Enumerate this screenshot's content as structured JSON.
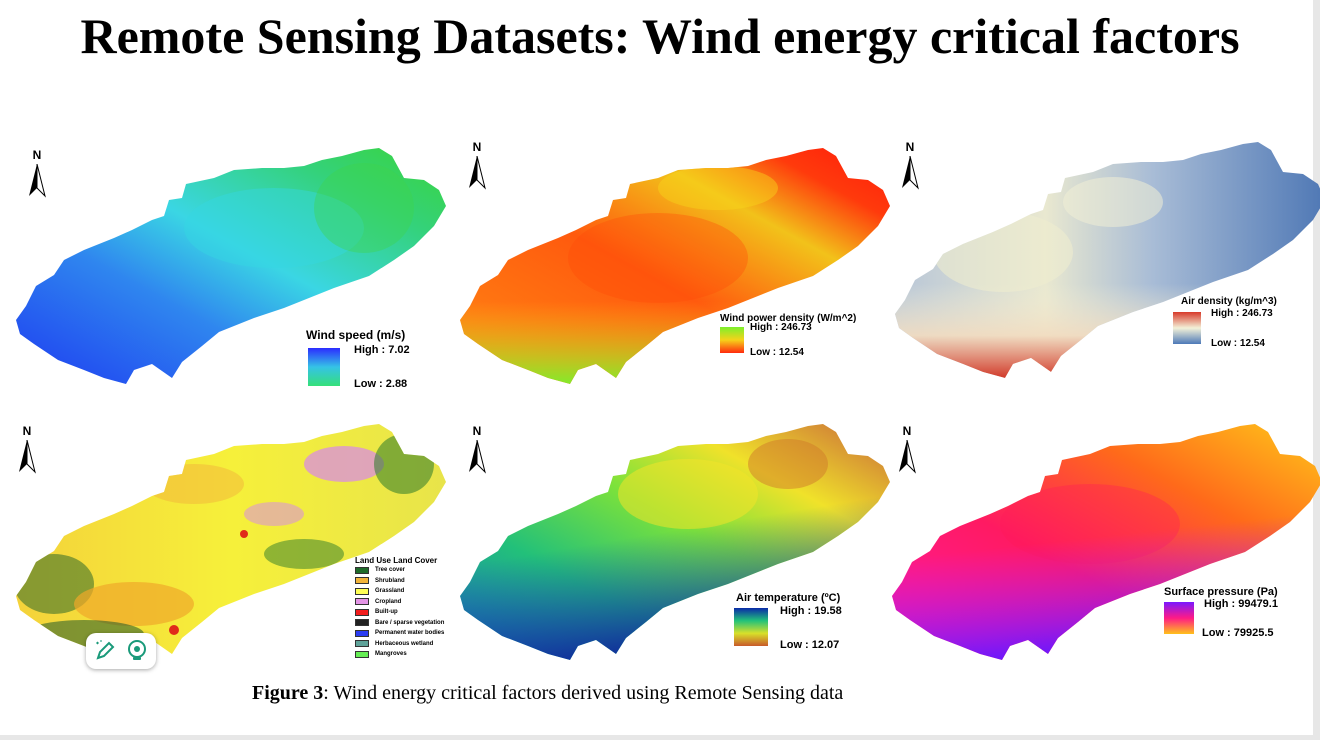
{
  "title": "Remote Sensing Datasets: Wind energy critical factors",
  "north_label": "N",
  "panels": [
    {
      "id": "wind_speed",
      "legend_title": "Wind speed (m/s)",
      "high": "High : 7.02",
      "low": "Low : 2.88",
      "ramp": [
        "#2b2cff",
        "#35c3e6",
        "#35e07a"
      ]
    },
    {
      "id": "wind_power_density",
      "legend_title": "Wind power density (W/m^2)",
      "high": "High : 246.73",
      "low": "Low : 12.54",
      "ramp": [
        "#7cf02c",
        "#f6d21a",
        "#ff2a0e"
      ]
    },
    {
      "id": "air_density",
      "legend_title": "Air density (kg/m^3)",
      "high": "High : 246.73",
      "low": "Low : 12.54",
      "ramp": [
        "#d73a2a",
        "#f3f1d8",
        "#4d79b8"
      ]
    },
    {
      "id": "land_use",
      "legend_title": "Land Use Land Cover"
    },
    {
      "id": "air_temperature",
      "legend_title": "Air temperature (ºC)",
      "high": "High : 19.58",
      "low": "Low : 12.07",
      "ramp": [
        "#0a2aa8",
        "#22c27a",
        "#d8e02a",
        "#c85a2a"
      ]
    },
    {
      "id": "surface_pressure",
      "legend_title": "Surface pressure (Pa)",
      "high": "High : 99479.1",
      "low": "Low : 79925.5",
      "ramp": [
        "#7a18ff",
        "#ff1a86",
        "#ffc21a"
      ]
    }
  ],
  "lulc_legend": [
    {
      "label": "Tree cover",
      "color": "#1f6b2a"
    },
    {
      "label": "Shrubland",
      "color": "#f2b43a"
    },
    {
      "label": "Grassland",
      "color": "#ffff55"
    },
    {
      "label": "Cropland",
      "color": "#e495e6"
    },
    {
      "label": "Built-up",
      "color": "#f21d1d"
    },
    {
      "label": "Bare / sparse vegetation",
      "color": "#222222"
    },
    {
      "label": "Permanent water bodies",
      "color": "#2b3df2"
    },
    {
      "label": "Herbaceous wetland",
      "color": "#5fa39a"
    },
    {
      "label": "Mangroves",
      "color": "#66ee55"
    }
  ],
  "caption": {
    "label": "Figure 3",
    "text": ": Wind energy critical factors derived using Remote Sensing data"
  },
  "toolbar": {
    "items": [
      "pencil-sparkle-icon",
      "lightbulb-icon"
    ]
  }
}
